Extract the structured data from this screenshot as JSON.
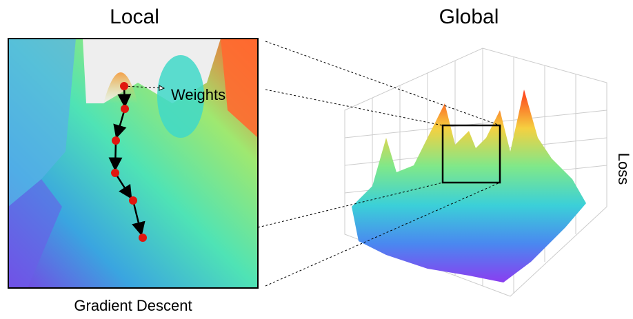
{
  "titles": {
    "local": "Local",
    "global": "Global"
  },
  "labels": {
    "weights": "Weights",
    "caption": "Gradient Descent",
    "axis": "Loss"
  }
}
